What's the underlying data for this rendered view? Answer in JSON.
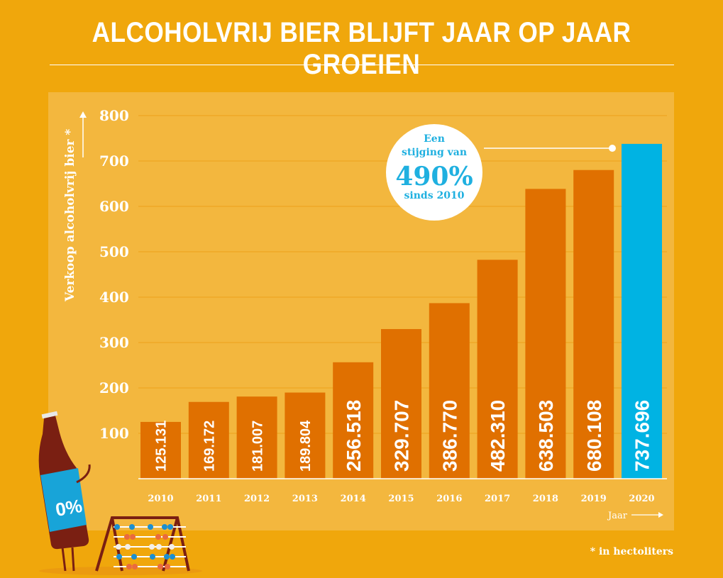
{
  "title": "ALCOHOLVRIJ BIER BLIJFT JAAR OP JAAR GROEIEN",
  "footnote": "* in hectoliters",
  "callout": {
    "line1": "Een",
    "line2": "stijging van",
    "value": "490%",
    "line3": "sinds 2010"
  },
  "colors": {
    "background": "#f0a70c",
    "panel": "#f3b73e",
    "bar": "#e07000",
    "highlight": "#00b3e3",
    "text": "#ffffff"
  },
  "chart_data": {
    "type": "bar",
    "title": "ALCOHOLVRIJ BIER BLIJFT JAAR OP JAAR GROEIEN",
    "xlabel": "Jaar",
    "ylabel": "Verkoop alcoholvrij bier *",
    "ylim": [
      0,
      800
    ],
    "yticks": [
      100,
      200,
      300,
      400,
      500,
      600,
      700,
      800
    ],
    "grid": true,
    "categories": [
      "2010",
      "2011",
      "2012",
      "2013",
      "2014",
      "2015",
      "2016",
      "2017",
      "2018",
      "2019",
      "2020"
    ],
    "values": [
      125.131,
      169.172,
      181.007,
      189.804,
      256.518,
      329.707,
      386.77,
      482.31,
      638.503,
      680.108,
      737.696
    ],
    "data_labels": [
      "125.131",
      "169.172",
      "181.007",
      "189.804",
      "256.518",
      "329.707",
      "386.770",
      "482.310",
      "638.503",
      "680.108",
      "737.696"
    ],
    "highlight_category": "2020"
  },
  "illustration": {
    "bottle_label": "0%"
  }
}
